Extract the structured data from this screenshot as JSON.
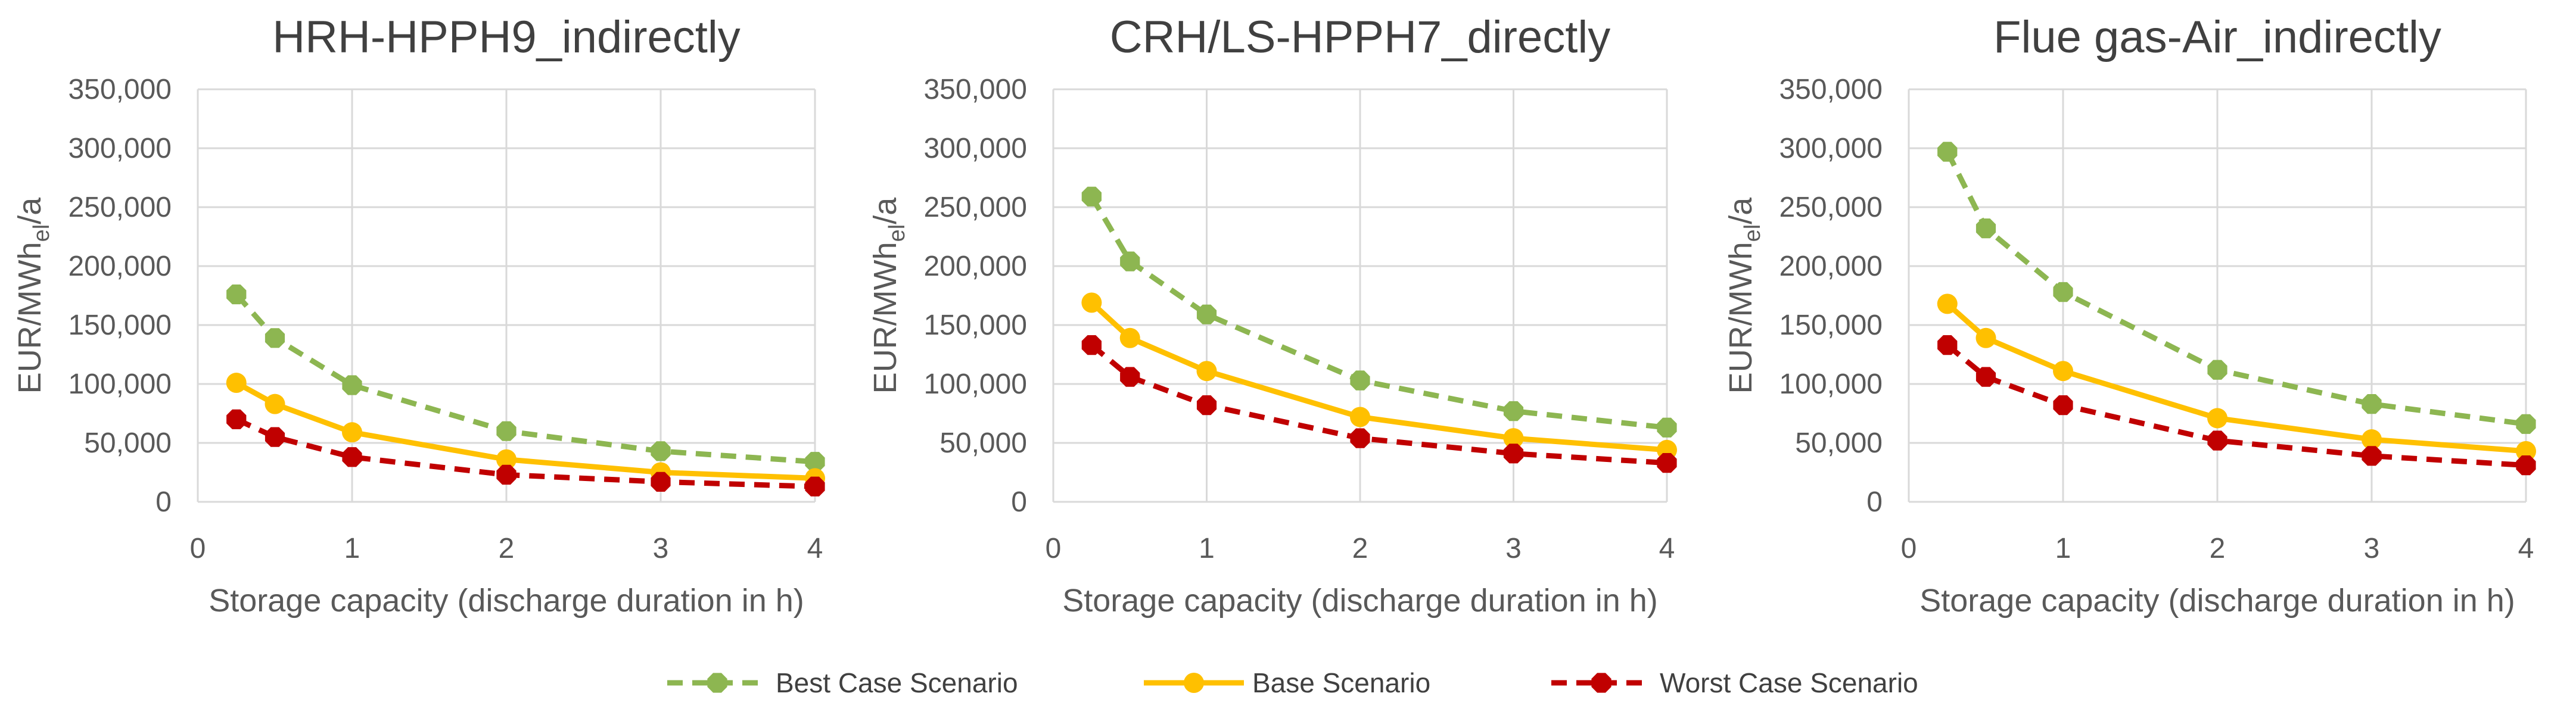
{
  "chart_data": [
    {
      "type": "line",
      "title": "HRH-HPPH9_indirectly",
      "xlabel": "Storage capacity (discharge duration in h)",
      "ylabel": {
        "base": "EUR/MWh",
        "sub": "el",
        "suffix": "/a"
      },
      "xlim": [
        0,
        4
      ],
      "ylim": [
        0,
        350000
      ],
      "x_ticks": [
        0,
        1,
        2,
        3,
        4
      ],
      "y_ticks": [
        0,
        50000,
        100000,
        150000,
        200000,
        250000,
        300000,
        350000
      ],
      "grid": true,
      "series": [
        {
          "name": "Best Case Scenario",
          "x": [
            0.25,
            0.5,
            1,
            2,
            3,
            4
          ],
          "values": [
            176000,
            139000,
            99000,
            60000,
            43000,
            34000
          ]
        },
        {
          "name": "Base Scenario",
          "x": [
            0.25,
            0.5,
            1,
            2,
            3,
            4
          ],
          "values": [
            101000,
            83000,
            59000,
            36000,
            25000,
            20000
          ]
        },
        {
          "name": "Worst Case Scenario",
          "x": [
            0.25,
            0.5,
            1,
            2,
            3,
            4
          ],
          "values": [
            70000,
            55000,
            38000,
            23000,
            17000,
            13000
          ]
        }
      ]
    },
    {
      "type": "line",
      "title": "CRH/LS-HPPH7_directly",
      "xlabel": "Storage capacity (discharge duration in h)",
      "ylabel": {
        "base": "EUR/MWh",
        "sub": "el",
        "suffix": "/a"
      },
      "xlim": [
        0,
        4
      ],
      "ylim": [
        0,
        350000
      ],
      "x_ticks": [
        0,
        1,
        2,
        3,
        4
      ],
      "y_ticks": [
        0,
        50000,
        100000,
        150000,
        200000,
        250000,
        300000,
        350000
      ],
      "grid": true,
      "series": [
        {
          "name": "Best Case Scenario",
          "x": [
            0.25,
            0.5,
            1,
            2,
            3,
            4
          ],
          "values": [
            259000,
            204000,
            159000,
            103000,
            77000,
            63000
          ]
        },
        {
          "name": "Base Scenario",
          "x": [
            0.25,
            0.5,
            1,
            2,
            3,
            4
          ],
          "values": [
            169000,
            139000,
            111000,
            72000,
            54000,
            44000
          ]
        },
        {
          "name": "Worst Case Scenario",
          "x": [
            0.25,
            0.5,
            1,
            2,
            3,
            4
          ],
          "values": [
            133000,
            106000,
            82000,
            54000,
            41000,
            33000
          ]
        }
      ]
    },
    {
      "type": "line",
      "title": "Flue gas-Air_indirectly",
      "xlabel": "Storage capacity (discharge duration in h)",
      "ylabel": {
        "base": "EUR/MWh",
        "sub": "el",
        "suffix": "/a"
      },
      "xlim": [
        0,
        4
      ],
      "ylim": [
        0,
        350000
      ],
      "x_ticks": [
        0,
        1,
        2,
        3,
        4
      ],
      "y_ticks": [
        0,
        50000,
        100000,
        150000,
        200000,
        250000,
        300000,
        350000
      ],
      "grid": true,
      "series": [
        {
          "name": "Best Case Scenario",
          "x": [
            0.25,
            0.5,
            1,
            2,
            3,
            4
          ],
          "values": [
            297000,
            232000,
            178000,
            112000,
            83000,
            66000
          ]
        },
        {
          "name": "Base Scenario",
          "x": [
            0.25,
            0.5,
            1,
            2,
            3,
            4
          ],
          "values": [
            168000,
            139000,
            111000,
            71000,
            53000,
            43000
          ]
        },
        {
          "name": "Worst Case Scenario",
          "x": [
            0.25,
            0.5,
            1,
            2,
            3,
            4
          ],
          "values": [
            133000,
            106000,
            82000,
            52000,
            39000,
            31000
          ]
        }
      ]
    }
  ],
  "legend": {
    "position": "bottom-center",
    "entries": [
      {
        "name": "Best Case Scenario",
        "color": "#8DB651",
        "style": "dashed"
      },
      {
        "name": "Base Scenario",
        "color": "#FFC000",
        "style": "solid"
      },
      {
        "name": "Worst Case Scenario",
        "color": "#C00000",
        "style": "dashed"
      }
    ]
  },
  "colors": {
    "best": "#8DB651",
    "base": "#FFC000",
    "worst": "#C00000",
    "grid": "#D9D9D9",
    "text": "#595959",
    "title": "#404040"
  }
}
